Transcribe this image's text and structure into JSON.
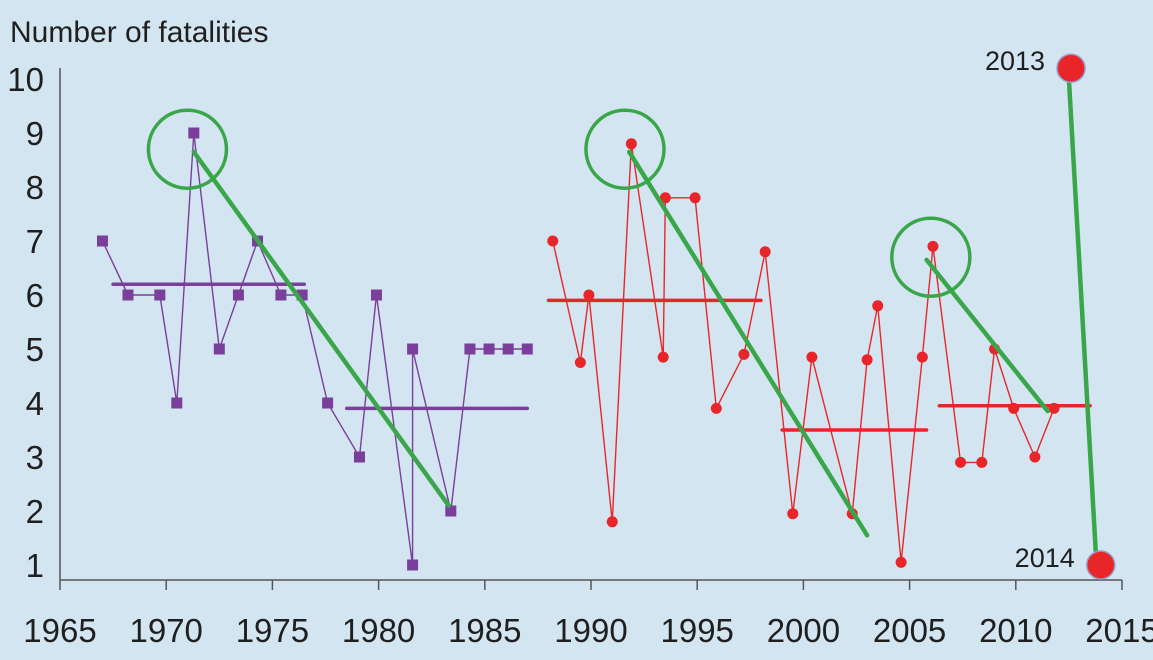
{
  "chart_data": {
    "type": "line",
    "title": "",
    "ylabel": "Number of fatalities",
    "xlabel": "",
    "xlim": [
      1965,
      2015
    ],
    "ylim": [
      1,
      10
    ],
    "x_ticks": [
      "1965",
      "1970",
      "1975",
      "1980",
      "1985",
      "1990",
      "1995",
      "2000",
      "2005",
      "2010",
      "2015"
    ],
    "y_ticks": [
      "1",
      "2",
      "3",
      "4",
      "5",
      "6",
      "7",
      "8",
      "9",
      "10"
    ],
    "grid": false,
    "colors": {
      "purple": "#7a3f9a",
      "red": "#e8262a",
      "green": "#3aa64a",
      "axis": "#555555"
    },
    "series": [
      {
        "color": "#7a3f9a",
        "marker": "square",
        "points": [
          [
            1967.0,
            7
          ],
          [
            1968.2,
            6
          ],
          [
            1969.7,
            6
          ],
          [
            1970.5,
            4
          ],
          [
            1971.3,
            9
          ],
          [
            1972.5,
            5
          ],
          [
            1973.4,
            6
          ],
          [
            1974.3,
            7
          ],
          [
            1975.4,
            6
          ],
          [
            1976.4,
            6
          ],
          [
            1977.6,
            4
          ],
          [
            1979.1,
            3
          ],
          [
            1979.9,
            6
          ],
          [
            1981.6,
            1
          ],
          [
            1981.6,
            5
          ],
          [
            1983.4,
            2
          ],
          [
            1984.3,
            5
          ],
          [
            1985.2,
            5
          ],
          [
            1986.1,
            5
          ],
          [
            1987.0,
            5
          ]
        ]
      },
      {
        "color": "#e8262a",
        "marker": "circle",
        "points": [
          [
            1988.2,
            7
          ],
          [
            1989.5,
            4.75
          ],
          [
            1989.9,
            6
          ],
          [
            1991.0,
            1.8
          ],
          [
            1991.9,
            8.8
          ],
          [
            1993.4,
            4.85
          ],
          [
            1993.5,
            7.8
          ],
          [
            1994.9,
            7.8
          ],
          [
            1995.9,
            3.9
          ],
          [
            1997.2,
            4.9
          ],
          [
            1998.2,
            6.8
          ],
          [
            1999.5,
            1.95
          ],
          [
            2000.4,
            4.85
          ],
          [
            2002.3,
            1.95
          ],
          [
            2003.0,
            4.8
          ],
          [
            2003.5,
            5.8
          ],
          [
            2004.6,
            1.05
          ],
          [
            2005.6,
            4.85
          ],
          [
            2006.1,
            6.9
          ],
          [
            2007.4,
            2.9
          ],
          [
            2008.4,
            2.9
          ],
          [
            2009.0,
            5.0
          ],
          [
            2009.9,
            3.9
          ],
          [
            2010.9,
            3.0
          ],
          [
            2011.8,
            3.9
          ]
        ]
      }
    ],
    "means": [
      {
        "color": "#7a3f9a",
        "x": [
          1967.5,
          1976.5
        ],
        "y": 6.2
      },
      {
        "color": "#7a3f9a",
        "x": [
          1978.5,
          1987.0
        ],
        "y": 3.9
      },
      {
        "color": "#e8262a",
        "x": [
          1988.0,
          1998.0
        ],
        "y": 5.9
      },
      {
        "color": "#e8262a",
        "x": [
          1999.0,
          2005.8
        ],
        "y": 3.5
      },
      {
        "color": "#e8262a",
        "x": [
          2006.4,
          2013.5
        ],
        "y": 3.95
      }
    ],
    "trend_lines": [
      {
        "x": [
          1971.3,
          1983.3
        ],
        "y": [
          8.65,
          2.1
        ]
      },
      {
        "x": [
          1991.8,
          2003.0
        ],
        "y": [
          8.65,
          1.55
        ]
      },
      {
        "x": [
          2005.8,
          2011.5
        ],
        "y": [
          6.65,
          3.85
        ]
      },
      {
        "x": [
          2012.5,
          2013.8
        ],
        "y": [
          10.0,
          1.0
        ]
      }
    ],
    "highlight_circles": [
      {
        "x": 1971.0,
        "y": 8.7
      },
      {
        "x": 1991.6,
        "y": 8.7
      },
      {
        "x": 2006.0,
        "y": 6.7
      }
    ],
    "big_points": [
      {
        "label": "2013",
        "x": 2012.6,
        "y": 10.2
      },
      {
        "label": "2014",
        "x": 2014.0,
        "y": 1.0
      }
    ]
  }
}
